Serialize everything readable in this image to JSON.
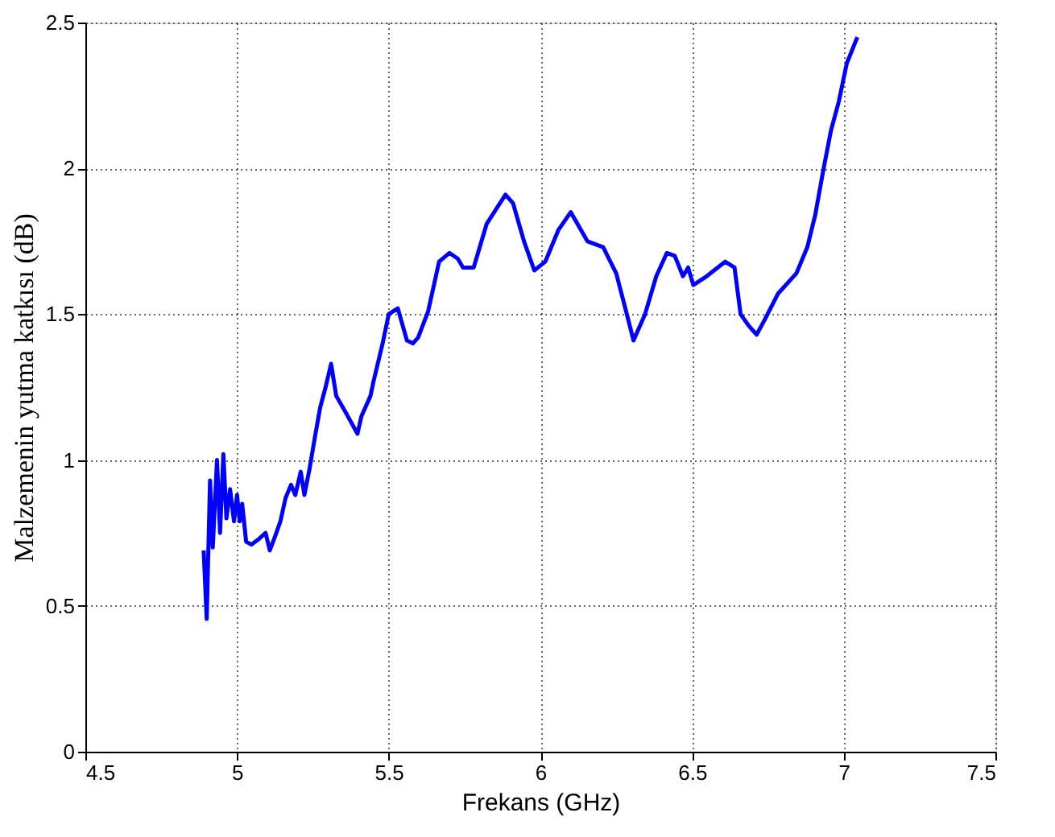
{
  "chart_data": {
    "type": "line",
    "xlabel": "Frekans (GHz)",
    "ylabel": "Malzemenin yutma katkısı (dB)",
    "xlim": [
      4.5,
      7.5
    ],
    "xticks": [
      4.5,
      5,
      5.5,
      6,
      6.5,
      7,
      7.5
    ],
    "ylim": [
      0,
      2.5
    ],
    "yticks": [
      0,
      0.5,
      1,
      1.5,
      2,
      2.5
    ],
    "grid": true,
    "line_style": "solid",
    "marker": "none",
    "series": [
      {
        "color": "#0000ff",
        "x": [
          4.89,
          4.9,
          4.911,
          4.92,
          4.934,
          4.944,
          4.955,
          4.965,
          4.977,
          4.99,
          5.0,
          5.009,
          5.017,
          5.03,
          5.047,
          5.073,
          5.094,
          5.108,
          5.126,
          5.143,
          5.16,
          5.178,
          5.192,
          5.21,
          5.222,
          5.239,
          5.257,
          5.274,
          5.292,
          5.31,
          5.327,
          5.36,
          5.397,
          5.41,
          5.44,
          5.45,
          5.48,
          5.5,
          5.53,
          5.56,
          5.58,
          5.597,
          5.63,
          5.666,
          5.7,
          5.728,
          5.745,
          5.78,
          5.823,
          5.885,
          5.91,
          5.946,
          5.98,
          6.016,
          6.06,
          6.1,
          6.155,
          6.207,
          6.25,
          6.285,
          6.307,
          6.345,
          6.382,
          6.417,
          6.443,
          6.47,
          6.487,
          6.504,
          6.548,
          6.609,
          6.64,
          6.66,
          6.687,
          6.713,
          6.739,
          6.783,
          6.844,
          6.88,
          6.906,
          6.932,
          6.958,
          6.984,
          7.01,
          7.045
        ],
        "values": [
          0.69,
          0.455,
          0.93,
          0.7,
          1.0,
          0.75,
          1.02,
          0.8,
          0.9,
          0.79,
          0.88,
          0.79,
          0.85,
          0.72,
          0.71,
          0.73,
          0.75,
          0.69,
          0.74,
          0.79,
          0.87,
          0.915,
          0.88,
          0.96,
          0.88,
          0.97,
          1.08,
          1.18,
          1.25,
          1.33,
          1.22,
          1.16,
          1.09,
          1.15,
          1.22,
          1.27,
          1.4,
          1.5,
          1.52,
          1.41,
          1.4,
          1.42,
          1.51,
          1.68,
          1.71,
          1.69,
          1.66,
          1.66,
          1.81,
          1.91,
          1.88,
          1.75,
          1.65,
          1.68,
          1.79,
          1.85,
          1.75,
          1.73,
          1.64,
          1.5,
          1.41,
          1.5,
          1.63,
          1.71,
          1.7,
          1.63,
          1.66,
          1.6,
          1.63,
          1.68,
          1.66,
          1.5,
          1.46,
          1.43,
          1.48,
          1.57,
          1.64,
          1.73,
          1.84,
          1.99,
          2.13,
          2.23,
          2.36,
          2.45
        ]
      }
    ]
  }
}
